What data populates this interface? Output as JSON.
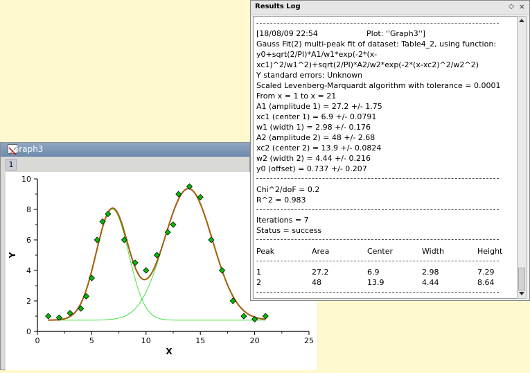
{
  "graph_window": {
    "title": "Graph3",
    "layer": "1"
  },
  "chart_data": {
    "type": "scatter",
    "xlabel": "X",
    "ylabel": "Y",
    "xlim": [
      0,
      25
    ],
    "ylim": [
      0,
      10
    ],
    "x_ticks": [
      "0",
      "5",
      "10",
      "15",
      "20",
      "25"
    ],
    "y_ticks": [
      "0",
      "2",
      "4",
      "6",
      "8",
      "10"
    ],
    "grid": false,
    "series": [
      {
        "type": "scatter",
        "marker": "diamond",
        "color": "#00c000",
        "x": [
          1,
          2,
          3,
          4,
          4.5,
          5,
          5.5,
          6,
          6.5,
          8,
          9,
          10,
          11,
          12,
          12.5,
          13,
          14,
          15,
          16,
          17,
          18,
          19,
          20,
          21
        ],
        "y": [
          1.0,
          0.9,
          1.2,
          1.5,
          2.3,
          3.5,
          6.0,
          7.2,
          7.7,
          6.0,
          4.5,
          4.0,
          5.0,
          6.5,
          7.0,
          9.0,
          9.5,
          8.8,
          6.0,
          4.0,
          2.0,
          1.0,
          0.8,
          1.0
        ]
      },
      {
        "type": "line",
        "role": "cumulative fit",
        "color": "#ee0000"
      },
      {
        "type": "line",
        "role": "peak 1",
        "color": "#40e040"
      },
      {
        "type": "line",
        "role": "peak 2",
        "color": "#40e040"
      }
    ],
    "fit": {
      "y0": 0.737,
      "xc1": 6.9,
      "w1": 2.98,
      "A1": 27.2,
      "xc2": 13.9,
      "w2": 4.44,
      "A2": 48,
      "x_from": 1,
      "x_to": 21
    }
  },
  "results_log": {
    "title": "Results Log",
    "float_icon": "◇",
    "close_icon": "×",
    "lines": [
      "[18/08/09 22:54",
      "Gauss Fit(2) multi-peak fit of dataset: Table4_2, using function:",
      "y0+sqrt(2/PI)*A1/w1*exp(-2*(x-",
      "xc1)^2/w1^2)+sqrt(2/PI)*A2/w2*exp(-2*(x-xc2)^2/w2^2)",
      "Y standard errors: Unknown",
      "Scaled Levenberg-Marquardt algorithm with tolerance = 0.0001",
      "From x = 1 to x = 21",
      "A1 (amplitude 1) = 27.2 +/- 1.75",
      "xc1 (center 1) = 6.9 +/- 0.0791",
      "w1 (width 1) = 2.98 +/- 0.176",
      "A2 (amplitude 2) = 48 +/- 2.68",
      "xc2 (center 2) = 13.9 +/- 0.0824",
      "w2 (width 2) = 4.44 +/- 0.216",
      "y0 (offset) = 0.737 +/- 0.207"
    ],
    "plot_label": "Plot:  ''Graph3'']",
    "chi_line": "Chi^2/doF = 0.2",
    "r2_line": "R^2 = 0.983",
    "iterations_line": "Iterations = 7",
    "status_line": "Status = success",
    "table": {
      "headers": [
        "Peak",
        "Area",
        "Center",
        "Width",
        "Height"
      ],
      "rows": [
        [
          "1",
          "27.2",
          "6.9",
          "2.98",
          "7.29"
        ],
        [
          "2",
          "48",
          "13.9",
          "4.44",
          "8.64"
        ]
      ]
    }
  }
}
